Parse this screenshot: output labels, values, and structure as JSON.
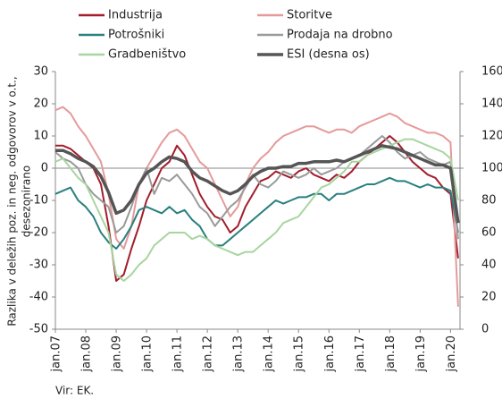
{
  "chart_data": {
    "type": "line",
    "y_label_lines": [
      "Razlika v deležih poz. in neg. odgovorov v o.t.,",
      "desezonirano"
    ],
    "source": "Vir: EK.",
    "categories": [
      "jan.07",
      null,
      null,
      null,
      "jan.08",
      null,
      null,
      null,
      "jan.09",
      null,
      null,
      null,
      "jan.10",
      null,
      null,
      null,
      "jan.11",
      null,
      null,
      null,
      "jan.12",
      null,
      null,
      null,
      "jan.13",
      null,
      null,
      null,
      "jan.14",
      null,
      null,
      null,
      "jan.15",
      null,
      null,
      null,
      "jan.16",
      null,
      null,
      null,
      "jan.17",
      null,
      null,
      null,
      "jan.18",
      null,
      null,
      null,
      "jan.19",
      null,
      null,
      null,
      "jan.20",
      null
    ],
    "ylim": [
      -50,
      30
    ],
    "yticks": [
      -50,
      -40,
      -30,
      -20,
      -10,
      0,
      10,
      20,
      30
    ],
    "y2lim": [
      0,
      160
    ],
    "y2ticks": [
      0,
      20,
      40,
      60,
      80,
      100,
      120,
      140,
      160
    ],
    "series": [
      {
        "name": "Industrija",
        "color": "#a31d2b",
        "values": [
          7,
          7,
          6,
          4,
          2,
          0,
          -5,
          -18,
          -35,
          -33,
          -25,
          -18,
          -10,
          -5,
          0,
          2,
          7,
          4,
          -2,
          -8,
          -12,
          -15,
          -16,
          -20,
          -18,
          -12,
          -8,
          -4,
          -3,
          -1,
          -2,
          -3,
          -1,
          0,
          -2,
          -3,
          -4,
          -2,
          -3,
          -1,
          2,
          4,
          6,
          8,
          10,
          8,
          5,
          2,
          0,
          -2,
          -3,
          -6,
          -8,
          -28
        ]
      },
      {
        "name": "Storitve",
        "color": "#e59a9a",
        "values": [
          18,
          19,
          17,
          13,
          10,
          6,
          2,
          -8,
          -22,
          -25,
          -18,
          -5,
          0,
          4,
          8,
          11,
          12,
          10,
          6,
          2,
          0,
          -5,
          -10,
          -15,
          -12,
          -5,
          0,
          3,
          5,
          8,
          10,
          11,
          12,
          13,
          13,
          12,
          11,
          12,
          12,
          11,
          13,
          14,
          15,
          16,
          17,
          16,
          14,
          13,
          12,
          11,
          11,
          10,
          8,
          -43
        ]
      },
      {
        "name": "Potrošniki",
        "color": "#2a7f7f",
        "values": [
          -8,
          -7,
          -6,
          -10,
          -12,
          -15,
          -20,
          -23,
          -25,
          -22,
          -18,
          -13,
          -12,
          -13,
          -14,
          -12,
          -14,
          -13,
          -16,
          -18,
          -22,
          -24,
          -24,
          -22,
          -20,
          -18,
          -16,
          -14,
          -12,
          -10,
          -11,
          -10,
          -9,
          -9,
          -8,
          -8,
          -10,
          -8,
          -8,
          -7,
          -6,
          -5,
          -5,
          -4,
          -3,
          -4,
          -4,
          -5,
          -6,
          -5,
          -6,
          -6,
          -7,
          -20
        ]
      },
      {
        "name": "Prodaja na drobno",
        "color": "#9a9a9a",
        "values": [
          5,
          3,
          2,
          0,
          -5,
          -8,
          -10,
          -12,
          -20,
          -18,
          -12,
          -5,
          0,
          -8,
          -3,
          -4,
          -2,
          -5,
          -8,
          -12,
          -14,
          -18,
          -15,
          -12,
          -10,
          -6,
          -2,
          -5,
          -6,
          -4,
          -1,
          -2,
          -3,
          -2,
          0,
          -2,
          -1,
          0,
          2,
          3,
          4,
          6,
          8,
          10,
          8,
          5,
          3,
          4,
          5,
          3,
          2,
          1,
          2,
          -22
        ]
      },
      {
        "name": "Gradbeništvo",
        "color": "#a8d5a0",
        "values": [
          2,
          3,
          0,
          -3,
          -5,
          -10,
          -15,
          -20,
          -33,
          -35,
          -33,
          -30,
          -28,
          -24,
          -22,
          -20,
          -20,
          -20,
          -22,
          -21,
          -22,
          -24,
          -25,
          -26,
          -27,
          -26,
          -26,
          -24,
          -22,
          -20,
          -17,
          -16,
          -15,
          -12,
          -9,
          -6,
          -5,
          -3,
          -1,
          2,
          2,
          4,
          5,
          6,
          7,
          8,
          9,
          9,
          8,
          7,
          6,
          5,
          3,
          -10
        ]
      },
      {
        "name": "ESI (desna os)",
        "color": "#555555",
        "axis": "y2",
        "values": [
          111,
          111,
          109,
          106,
          104,
          101,
          95,
          85,
          72,
          74,
          80,
          90,
          97,
          100,
          104,
          107,
          106,
          104,
          98,
          94,
          92,
          89,
          86,
          84,
          86,
          90,
          95,
          98,
          100,
          100,
          101,
          101,
          103,
          103,
          104,
          104,
          104,
          105,
          104,
          106,
          108,
          110,
          112,
          114,
          113,
          112,
          110,
          108,
          106,
          104,
          102,
          102,
          100,
          66
        ]
      }
    ]
  }
}
